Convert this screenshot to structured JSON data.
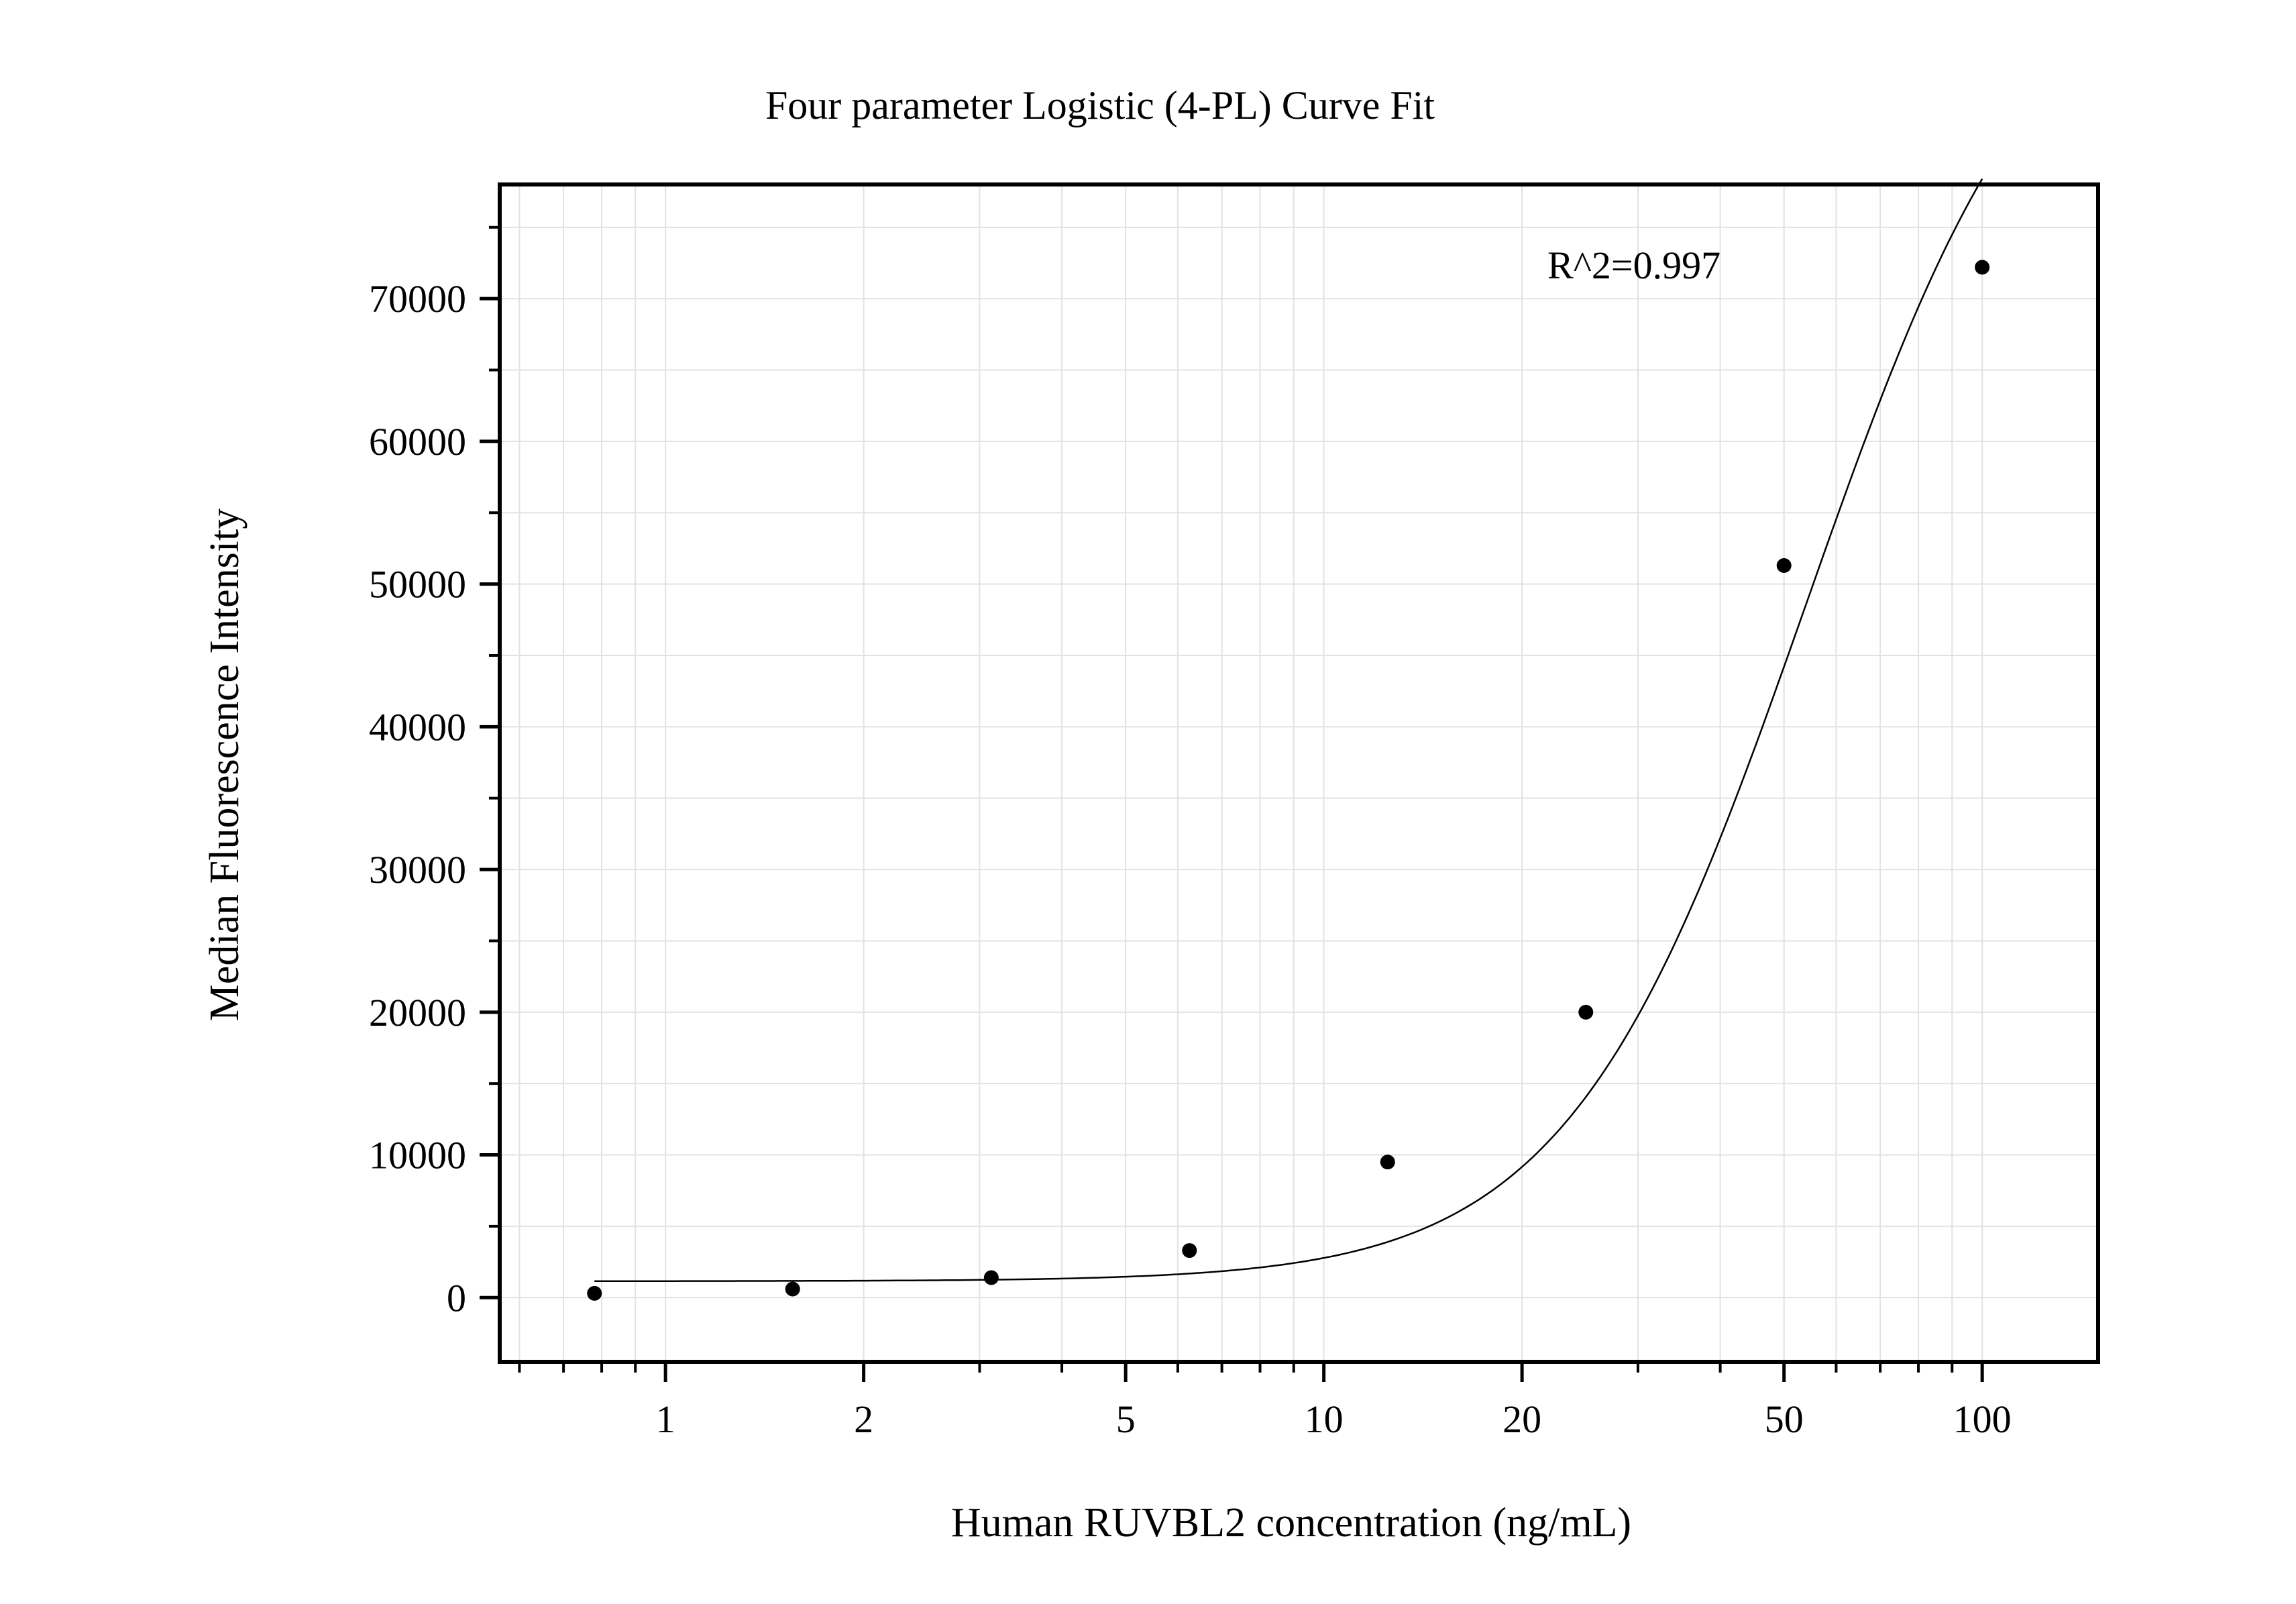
{
  "chart_data": {
    "type": "scatter",
    "title": "Four parameter Logistic (4-PL) Curve Fit",
    "xlabel": "Human RUVBL2 concentration (ng/mL)",
    "ylabel": "Median Fluorescence Intensity",
    "x_scale": "log",
    "xlim": [
      0.56,
      150
    ],
    "ylim": [
      -4500,
      78000
    ],
    "x_ticks": [
      1,
      2,
      5,
      10,
      20,
      50,
      100
    ],
    "x_tick_labels": [
      "1",
      "2",
      "5",
      "10",
      "20",
      "50",
      "100"
    ],
    "y_ticks": [
      0,
      10000,
      20000,
      30000,
      40000,
      50000,
      60000,
      70000
    ],
    "y_tick_labels": [
      "0",
      "10000",
      "20000",
      "30000",
      "40000",
      "50000",
      "60000",
      "70000"
    ],
    "grid": true,
    "annotation": "R^2=0.997",
    "points": [
      {
        "x": 0.78,
        "y": 300
      },
      {
        "x": 1.56,
        "y": 600
      },
      {
        "x": 3.125,
        "y": 1400
      },
      {
        "x": 6.25,
        "y": 3300
      },
      {
        "x": 12.5,
        "y": 9500
      },
      {
        "x": 25,
        "y": 20000
      },
      {
        "x": 50,
        "y": 51300
      },
      {
        "x": 100,
        "y": 72200
      }
    ],
    "fit": {
      "model": "4PL",
      "bottom": 1150,
      "top": 96000,
      "ec50": 54,
      "hill": 2.4,
      "x_range": [
        0.78,
        100
      ]
    }
  }
}
